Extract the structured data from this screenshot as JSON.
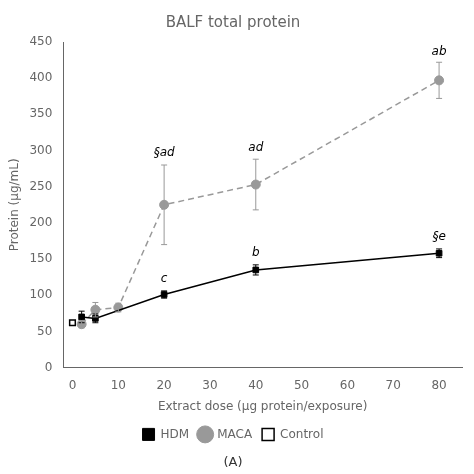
{
  "chart_data": {
    "type": "line",
    "title": "BALF total protein",
    "subtitle": "(A)",
    "x_label": "Extract dose (μg protein/exposure)",
    "y_label": "Protein (μg/mL)",
    "xlim": [
      -2,
      85
    ],
    "ylim": [
      0,
      450
    ],
    "xticks": [
      0,
      10,
      20,
      30,
      40,
      50,
      60,
      70,
      80
    ],
    "yticks": [
      0,
      50,
      100,
      150,
      200,
      250,
      300,
      350,
      400,
      450
    ],
    "grid": false,
    "legend": "bottom",
    "series": [
      {
        "name": "HDM",
        "color": "#000000",
        "marker": "square",
        "line_style": "solid",
        "x": [
          2,
          5,
          20,
          40,
          80
        ],
        "values": [
          70,
          68,
          101,
          135,
          158
        ],
        "errors": [
          8,
          6,
          5,
          7,
          6
        ]
      },
      {
        "name": "MACA",
        "color": "#999999",
        "marker": "circle",
        "line_style": "dashed",
        "x": [
          2,
          5,
          10,
          20,
          40,
          80
        ],
        "values": [
          60,
          80,
          83,
          225,
          253,
          397
        ],
        "errors": [
          5,
          10,
          6,
          55,
          35,
          25
        ]
      },
      {
        "name": "Control",
        "type": "scatter",
        "color": "#000000",
        "marker": "open_square",
        "x": [
          0
        ],
        "values": [
          62
        ]
      }
    ],
    "annotations": [
      {
        "x": 20,
        "y": 288,
        "text": "§ad"
      },
      {
        "x": 40,
        "y": 295,
        "text": "ad"
      },
      {
        "x": 80,
        "y": 428,
        "text": "ab"
      },
      {
        "x": 20,
        "y": 114,
        "text": "c"
      },
      {
        "x": 40,
        "y": 150,
        "text": "b"
      },
      {
        "x": 80,
        "y": 172,
        "text": "§e"
      }
    ]
  }
}
